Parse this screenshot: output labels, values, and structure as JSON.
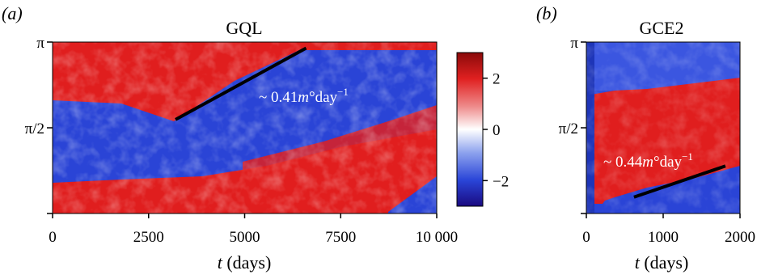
{
  "chart_data": [
    {
      "type": "heatmap",
      "panel_letter": "(a)",
      "title": "GQL",
      "xlabel_var": "t",
      "xlabel_unit": " (days)",
      "xlim": [
        0,
        10000
      ],
      "x_ticks": [
        0,
        2500,
        5000,
        7500,
        10000
      ],
      "x_tick_labels": [
        "0",
        "2500",
        "5000",
        "7500",
        "10 000"
      ],
      "ylim": [
        0,
        3.14159
      ],
      "y_ticks": [
        3.14159,
        1.5708
      ],
      "y_tick_labels": [
        "π",
        "π/2"
      ],
      "colorbar": {
        "range": [
          -3,
          3
        ],
        "ticks": [
          2,
          0,
          -2
        ],
        "tick_labels": [
          "2",
          "0",
          "−2"
        ],
        "colors": [
          "#1a0a80",
          "#2a45d8",
          "#8ea3ee",
          "#ffffff",
          "#ee8a8a",
          "#e02020",
          "#8a0a0a"
        ]
      },
      "trend_line": {
        "x": [
          3200,
          6600
        ],
        "y": [
          1.72,
          3.03
        ],
        "rate_prefix": "~ 0.41",
        "rate_unit_m": "m",
        "rate_suffix": "°day",
        "rate_exponent": "−1"
      },
      "pattern": "red upper band, blue band rising from π/2 to π, red lower band rising"
    },
    {
      "type": "heatmap",
      "panel_letter": "(b)",
      "title": "GCE2",
      "xlabel_var": "t",
      "xlabel_unit": " (days)",
      "xlim": [
        0,
        2000
      ],
      "x_ticks": [
        0,
        1000,
        2000
      ],
      "x_tick_labels": [
        "0",
        "1000",
        "2000"
      ],
      "ylim": [
        0,
        3.14159
      ],
      "y_ticks": [
        3.14159,
        1.5708
      ],
      "y_tick_labels": [
        "π",
        "π/2"
      ],
      "trend_line": {
        "x": [
          620,
          1810
        ],
        "y": [
          0.3,
          0.87
        ],
        "rate_prefix": "~ 0.44",
        "rate_unit_m": "m",
        "rate_suffix": "°day",
        "rate_exponent": "−1"
      },
      "pattern": "blue upper band, broad red band, blue lower corner"
    }
  ]
}
